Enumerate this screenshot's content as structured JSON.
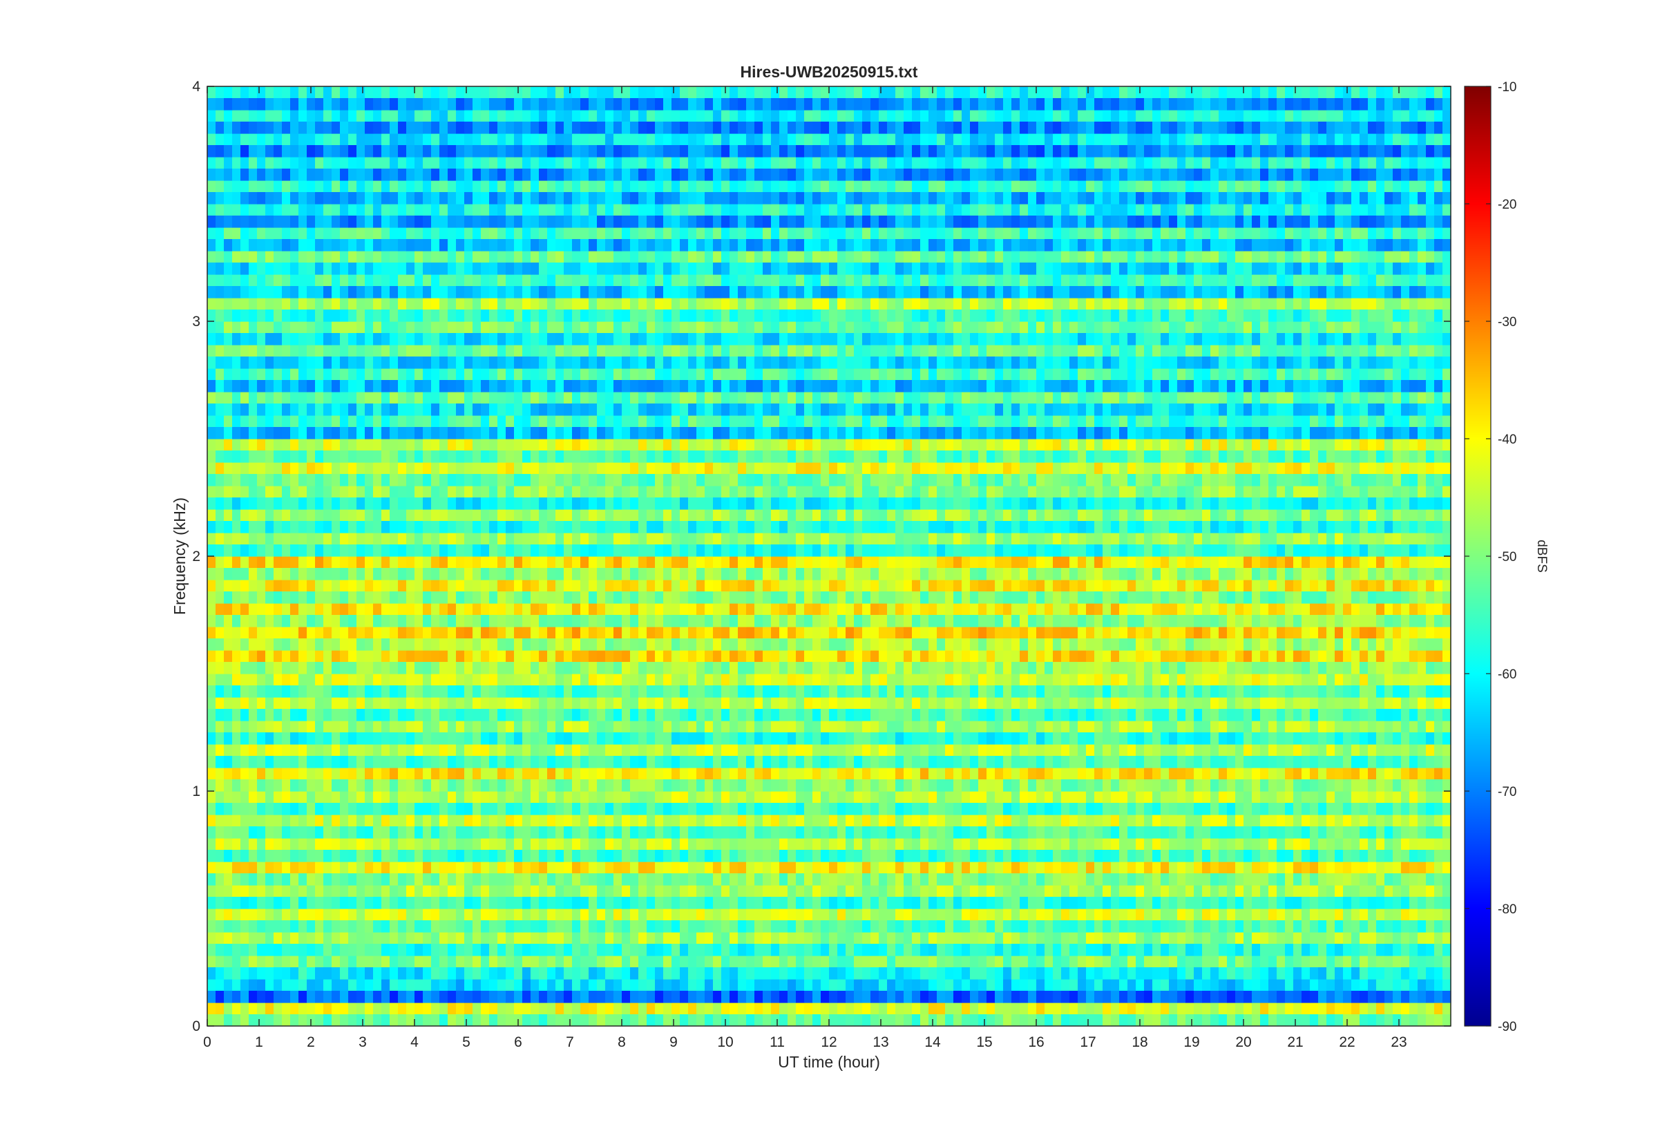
{
  "chart_data": {
    "type": "heatmap",
    "title": "Hires-UWB20250915.txt",
    "xlabel": "UT time (hour)",
    "ylabel": "Frequency (kHz)",
    "xlim": [
      0,
      24
    ],
    "ylim": [
      0,
      4
    ],
    "xticks": [
      0,
      1,
      2,
      3,
      4,
      5,
      6,
      7,
      8,
      9,
      10,
      11,
      12,
      13,
      14,
      15,
      16,
      17,
      18,
      19,
      20,
      21,
      22,
      23
    ],
    "yticks": [
      0,
      1,
      2,
      3,
      4
    ],
    "colormap": "jet",
    "colorbar": {
      "label": "dBFS",
      "range": [
        -90,
        -10
      ],
      "ticks": [
        -90,
        -80,
        -70,
        -60,
        -50,
        -40,
        -30,
        -20,
        -10
      ]
    },
    "bands": [
      {
        "f": 0.05,
        "level": -42
      },
      {
        "f": 0.15,
        "level": -62
      },
      {
        "f": 0.25,
        "level": -50
      },
      {
        "f": 0.35,
        "level": -47
      },
      {
        "f": 0.45,
        "level": -44
      },
      {
        "f": 0.55,
        "level": -46
      },
      {
        "f": 0.65,
        "level": -40
      },
      {
        "f": 0.75,
        "level": -45
      },
      {
        "f": 0.85,
        "level": -44
      },
      {
        "f": 0.95,
        "level": -45
      },
      {
        "f": 1.05,
        "level": -39
      },
      {
        "f": 1.15,
        "level": -45
      },
      {
        "f": 1.25,
        "level": -47
      },
      {
        "f": 1.35,
        "level": -45
      },
      {
        "f": 1.45,
        "level": -44
      },
      {
        "f": 1.55,
        "level": -38
      },
      {
        "f": 1.65,
        "level": -37
      },
      {
        "f": 1.75,
        "level": -39
      },
      {
        "f": 1.85,
        "level": -40
      },
      {
        "f": 1.95,
        "level": -38
      },
      {
        "f": 2.05,
        "level": -47
      },
      {
        "f": 2.15,
        "level": -48
      },
      {
        "f": 2.25,
        "level": -49
      },
      {
        "f": 2.35,
        "level": -42
      },
      {
        "f": 2.45,
        "level": -43
      },
      {
        "f": 2.55,
        "level": -55
      },
      {
        "f": 2.65,
        "level": -52
      },
      {
        "f": 2.75,
        "level": -55
      },
      {
        "f": 2.85,
        "level": -52
      },
      {
        "f": 2.95,
        "level": -51
      },
      {
        "f": 3.05,
        "level": -46
      },
      {
        "f": 3.15,
        "level": -55
      },
      {
        "f": 3.25,
        "level": -52
      },
      {
        "f": 3.35,
        "level": -55
      },
      {
        "f": 3.45,
        "level": -58
      },
      {
        "f": 3.55,
        "level": -56
      },
      {
        "f": 3.65,
        "level": -58
      },
      {
        "f": 3.75,
        "level": -60
      },
      {
        "f": 3.85,
        "level": -59
      },
      {
        "f": 3.95,
        "level": -58
      }
    ]
  }
}
